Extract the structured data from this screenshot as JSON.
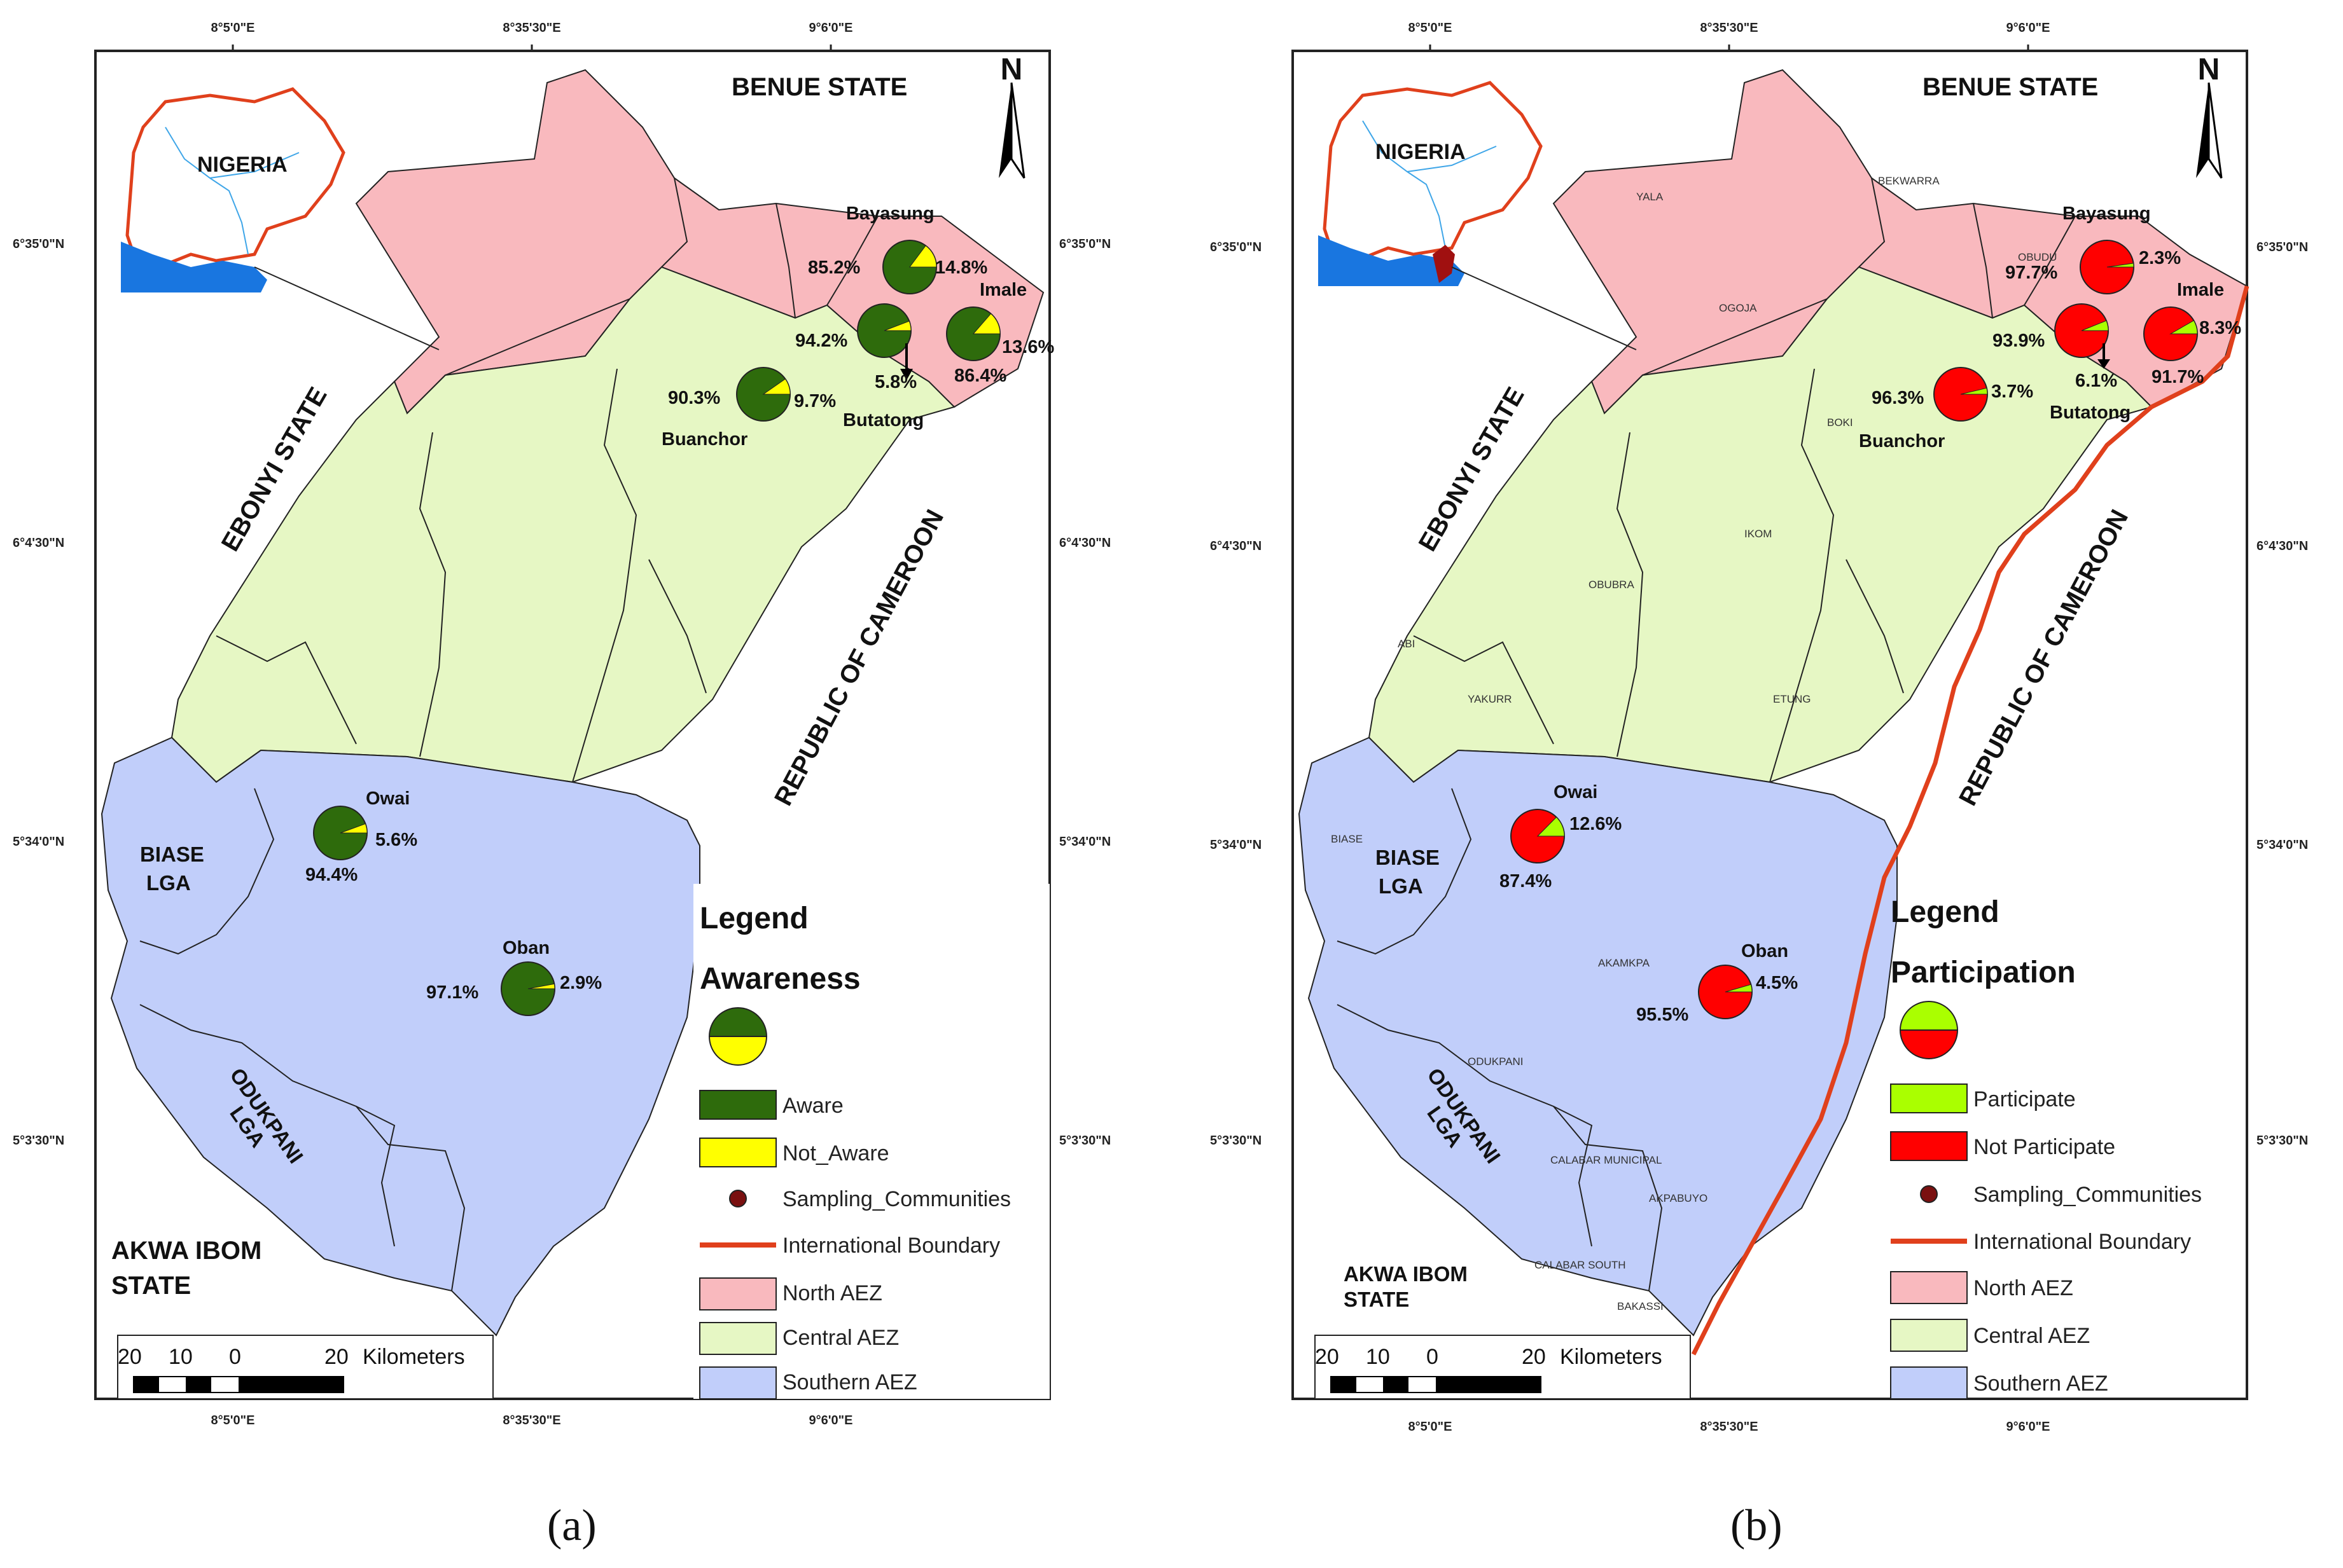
{
  "panels": [
    {
      "caption": "(a)",
      "coords": {
        "top": [
          "8°5'0\"E",
          "8°35'30\"E",
          "9°6'0\"E"
        ],
        "bottom": [
          "8°5'0\"E",
          "8°35'30\"E",
          "9°6'0\"E"
        ],
        "left": [
          "6°35'0\"N",
          "6°4'30\"N",
          "5°34'0\"N",
          "5°3'30\"N"
        ],
        "right": [
          "6°35'0\"N",
          "6°4'30\"N",
          "5°34'0\"N",
          "5°3'30\"N"
        ]
      },
      "north": "N",
      "inset_label": "NIGERIA",
      "states": {
        "benue": "BENUE STATE",
        "ebonyi": "EBONYI STATE",
        "cameroon": "REPUBLIC OF CAMEROON",
        "akwa1": "AKWA IBOM",
        "akwa2": "STATE"
      },
      "lgas": {
        "biase1": "BIASE",
        "biase2": "LGA",
        "odukpani1": "ODUKPANI",
        "odukpani2": "LGA"
      },
      "small_lgas": [],
      "communities": [
        {
          "name": "Bayasung",
          "v1": "85.2%",
          "v2": "14.8%"
        },
        {
          "name": "Imale",
          "v1": "86.4%",
          "v2": "13.6%"
        },
        {
          "name": "Butatong",
          "v1": "94.2%",
          "v2": "5.8%"
        },
        {
          "name": "Buanchor",
          "v1": "90.3%",
          "v2": "9.7%"
        },
        {
          "name": "Owai",
          "v1": "94.4%",
          "v2": "5.6%"
        },
        {
          "name": "Oban",
          "v1": "97.1%",
          "v2": "2.9%"
        }
      ],
      "legend": {
        "title": "Legend",
        "subtitle": "Awareness",
        "items": [
          "Aware",
          "Not_Aware",
          "Sampling_Communities",
          "International Boundary",
          "North AEZ",
          "Central AEZ",
          "Southern AEZ"
        ]
      },
      "scale": {
        "labels": [
          "20",
          "10",
          "0",
          "20"
        ],
        "unit": "Kilometers"
      },
      "colors": {
        "c1": "#2e6b0c",
        "c2": "#ffff00"
      }
    },
    {
      "caption": "(b)",
      "coords": {
        "top": [
          "8°5'0\"E",
          "8°35'30\"E",
          "9°6'0\"E"
        ],
        "bottom": [
          "8°5'0\"E",
          "8°35'30\"E",
          "9°6'0\"E"
        ],
        "left": [
          "6°35'0\"N",
          "6°4'30\"N",
          "5°34'0\"N",
          "5°3'30\"N"
        ],
        "right": [
          "6°35'0\"N",
          "6°4'30\"N",
          "5°34'0\"N",
          "5°3'30\"N"
        ]
      },
      "north": "N",
      "inset_label": "NIGERIA",
      "states": {
        "benue": "BENUE STATE",
        "ebonyi": "EBONYI STATE",
        "cameroon": "REPUBLIC OF CAMEROON",
        "akwa1": "AKWA IBOM",
        "akwa2": "STATE"
      },
      "lgas": {
        "biase1": "BIASE",
        "biase2": "LGA",
        "odukpani1": "ODUKPANI",
        "odukpani2": "LGA"
      },
      "small_lgas": [
        "YALA",
        "BEKWARRA",
        "OGOJA",
        "OBUDU",
        "BOKI",
        "IKOM",
        "OBUBRA",
        "ABI",
        "YAKURR",
        "ETUNG",
        "BIASE",
        "AKAMKPA",
        "ODUKPANI",
        "CALABAR MUNICIPAL",
        "AKPABUYO",
        "CALABAR SOUTH",
        "BAKASSI"
      ],
      "communities": [
        {
          "name": "Bayasung",
          "v1": "97.7%",
          "v2": "2.3%"
        },
        {
          "name": "Imale",
          "v1": "91.7%",
          "v2": "8.3%"
        },
        {
          "name": "Butatong",
          "v1": "93.9%",
          "v2": "6.1%"
        },
        {
          "name": "Buanchor",
          "v1": "96.3%",
          "v2": "3.7%"
        },
        {
          "name": "Owai",
          "v1": "87.4%",
          "v2": "12.6%"
        },
        {
          "name": "Oban",
          "v1": "95.5%",
          "v2": "4.5%"
        }
      ],
      "legend": {
        "title": "Legend",
        "subtitle": "Participation",
        "items": [
          "Participate",
          "Not Participate",
          "Sampling_Communities",
          "International Boundary",
          "North AEZ",
          "Central AEZ",
          "Southern AEZ"
        ]
      },
      "scale": {
        "labels": [
          "20",
          "10",
          "0",
          "20"
        ],
        "unit": "Kilometers"
      },
      "colors": {
        "c1": "#ff0000",
        "c2": "#aaff00"
      }
    }
  ],
  "aez_colors": {
    "north": "#f9b9be",
    "central": "#e6f7c4",
    "southern": "#c1cefa",
    "boundary": "#e0401c"
  },
  "pie_fractions": [
    [
      0.852,
      0.864,
      0.942,
      0.903,
      0.944,
      0.971
    ],
    [
      0.977,
      0.917,
      0.939,
      0.963,
      0.874,
      0.955
    ]
  ]
}
